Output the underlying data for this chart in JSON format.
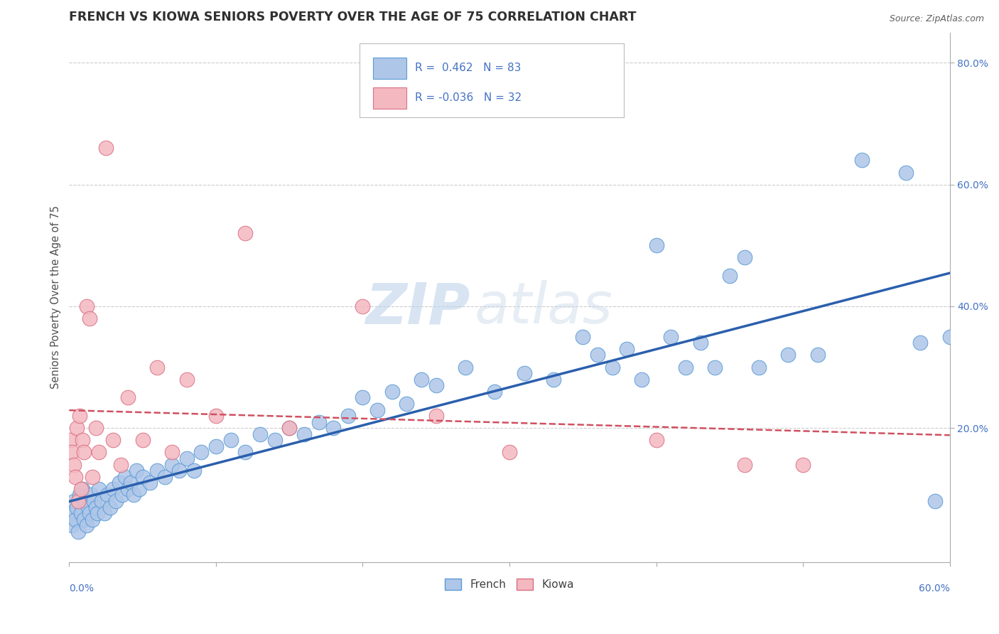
{
  "title": "FRENCH VS KIOWA SENIORS POVERTY OVER THE AGE OF 75 CORRELATION CHART",
  "source": "Source: ZipAtlas.com",
  "ylabel": "Seniors Poverty Over the Age of 75",
  "xlim": [
    0.0,
    0.6
  ],
  "ylim": [
    -0.02,
    0.85
  ],
  "watermark_zip": "ZIP",
  "watermark_atlas": "atlas",
  "legend_r_french": "0.462",
  "legend_n_french": "83",
  "legend_r_kiowa": "-0.036",
  "legend_n_kiowa": "32",
  "french_color": "#aec6e8",
  "french_edge_color": "#5b9bd5",
  "kiowa_color": "#f4b8c1",
  "kiowa_edge_color": "#d97080",
  "trendline_french_color": "#2b5fad",
  "trendline_kiowa_color": "#d05060",
  "background_color": "#ffffff",
  "grid_color": "#cccccc",
  "title_color": "#303030",
  "axis_label_color": "#4472c4",
  "tick_label_color": "#4472c4"
}
